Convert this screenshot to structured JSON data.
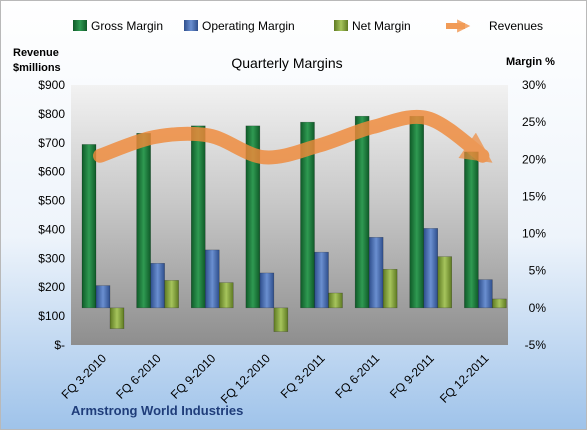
{
  "chart_data": {
    "type": "bar",
    "title": "Quarterly Margins",
    "left_axis_title": [
      "Revenue",
      "$millions"
    ],
    "right_axis_title": "Margin %",
    "footer": "Armstrong World Industries",
    "categories": [
      "FQ 3-2010",
      "FQ 6-2010",
      "FQ 9-2010",
      "FQ 12-2010",
      "FQ 3-2011",
      "FQ 6-2011",
      "FQ 9-2011",
      "FQ 12-2011"
    ],
    "left_axis": {
      "min": 0,
      "max": 900,
      "step": 100,
      "tick_labels": [
        "$-",
        "$100",
        "$200",
        "$300",
        "$400",
        "$500",
        "$600",
        "$700",
        "$800",
        "$900"
      ]
    },
    "right_axis": {
      "min": -5,
      "max": 30,
      "step": 5,
      "tick_labels": [
        "-5%",
        "0%",
        "5%",
        "10%",
        "15%",
        "20%",
        "25%",
        "30%"
      ]
    },
    "series": [
      {
        "name": "Gross Margin",
        "axis": "right",
        "color": "#1e7a3e",
        "values": [
          22.0,
          23.5,
          24.5,
          24.5,
          25.0,
          25.8,
          25.8,
          21.0
        ]
      },
      {
        "name": "Operating Margin",
        "axis": "right",
        "color": "#4a6fb0",
        "values": [
          3.0,
          6.0,
          7.8,
          4.7,
          7.5,
          9.5,
          10.7,
          3.8
        ]
      },
      {
        "name": "Net Margin",
        "axis": "right",
        "color": "#8aa84a",
        "values": [
          -2.8,
          3.7,
          3.4,
          -3.2,
          2.0,
          5.2,
          6.9,
          1.2
        ]
      },
      {
        "name": "Revenues",
        "axis": "left",
        "type": "line",
        "color": "#f08a3a",
        "values": [
          655,
          720,
          725,
          650,
          690,
          755,
          785,
          655
        ]
      }
    ],
    "legend_position": "top",
    "grid": false
  }
}
